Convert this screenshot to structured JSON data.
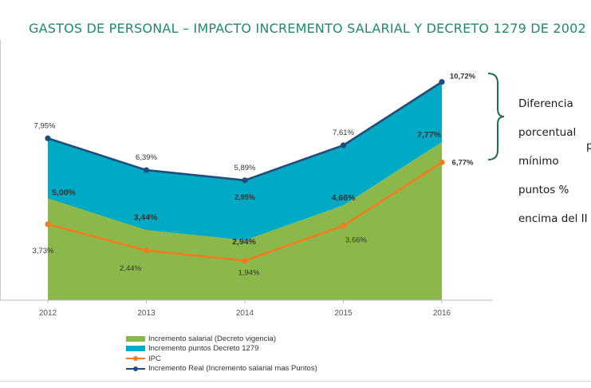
{
  "title": "GASTOS DE PERSONAL – IMPACTO INCREMENTO SALARIAL Y DECRETO 1279 DE 2002",
  "annotation": {
    "lines": [
      "Diferencia",
      "porcentual",
      "mínimo",
      "puntos  %",
      "encima del II"
    ],
    "extra": "p"
  },
  "colors": {
    "green": "#8ab84a",
    "teal": "#00a9c4",
    "orange": "#f47b20",
    "navy": "#1e4e7d",
    "brace": "#1f6b55"
  },
  "chart_data": {
    "type": "area",
    "title": "GASTOS DE PERSONAL – IMPACTO INCREMENTO SALARIAL Y DECRETO 1279 DE 2002",
    "categories": [
      "2012",
      "2013",
      "2014",
      "2015",
      "2016"
    ],
    "series": [
      {
        "name": "Incremento salarial (Decreto vigencia)",
        "kind": "area",
        "values": [
          5.0,
          3.44,
          2.94,
          4.66,
          7.77
        ],
        "labels": [
          "5,00%",
          "3,44%",
          "2,94%",
          "4,66%",
          "7,77%"
        ]
      },
      {
        "name": "Incremento puntos Decreto 1279",
        "kind": "area",
        "values": [
          2.95,
          2.95,
          2.95,
          2.95,
          2.95
        ],
        "labels": [
          "",
          "",
          "2,95%",
          "",
          ""
        ]
      },
      {
        "name": "IPC",
        "kind": "line",
        "values": [
          3.73,
          2.44,
          1.94,
          3.66,
          6.77
        ],
        "labels": [
          "3,73%",
          "2,44%",
          "1,94%",
          "3,66%",
          "6,77%"
        ]
      },
      {
        "name": "Incremento Real (Incremento salarial mas Puntos)",
        "kind": "line",
        "values": [
          7.95,
          6.39,
          5.89,
          7.61,
          10.72
        ],
        "labels": [
          "7,95%",
          "6,39%",
          "5,89%",
          "7,61%",
          "10,72%"
        ]
      }
    ],
    "ylim": [
      0,
      11.5
    ],
    "grid": false,
    "legend_position": "bottom-left"
  }
}
